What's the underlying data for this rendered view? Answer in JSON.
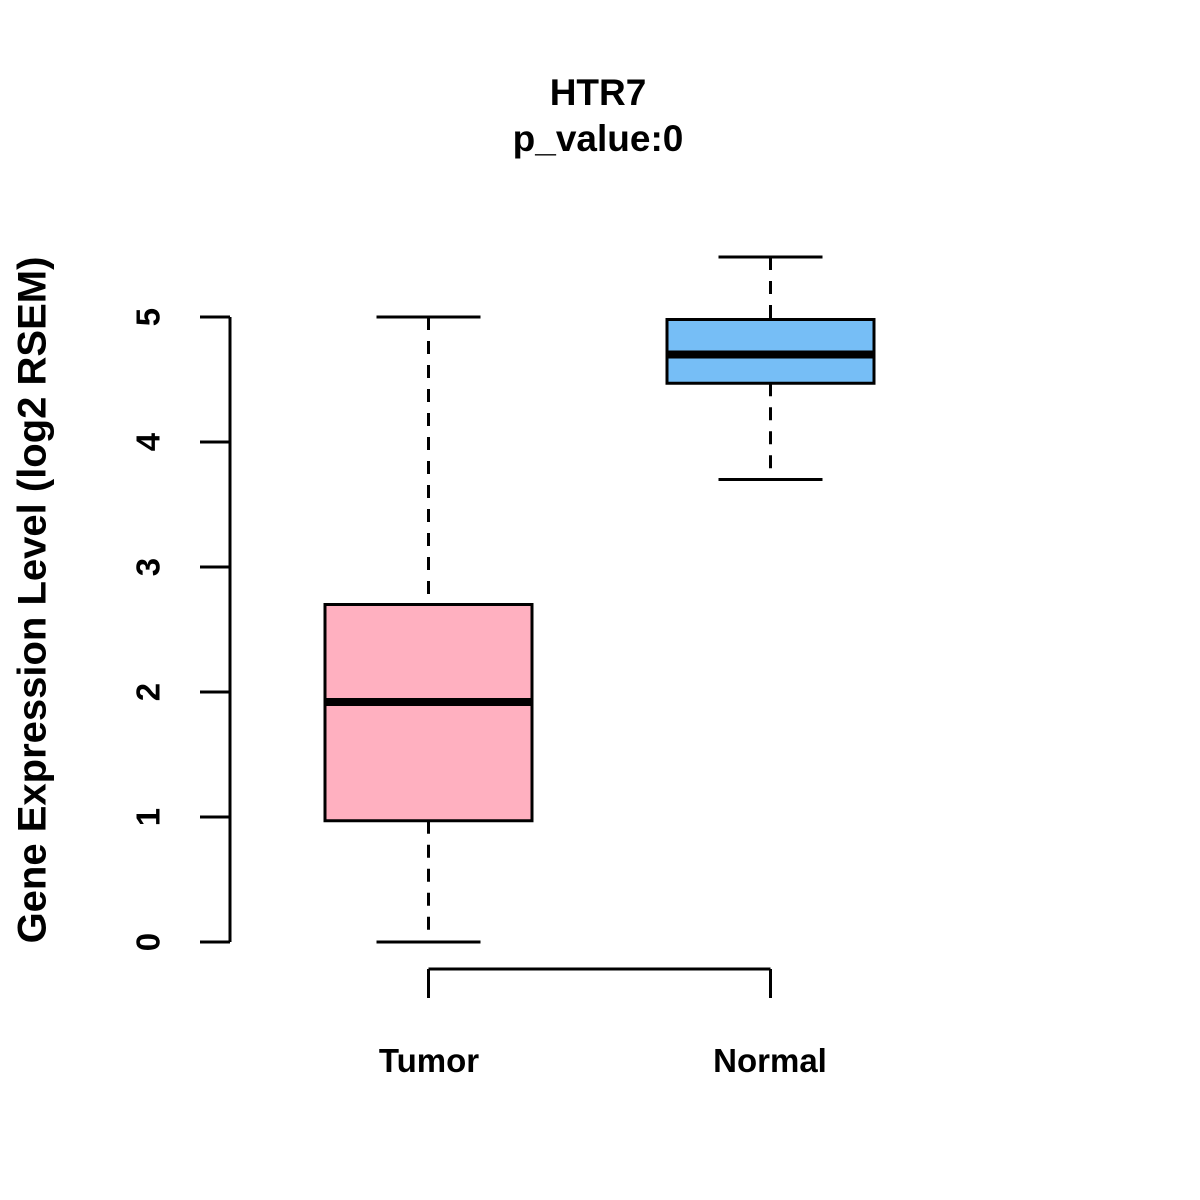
{
  "figure": {
    "background_color": "#FFFFFF",
    "axis_color": "#000000"
  },
  "chart_data": {
    "type": "boxplot",
    "title": "HTR7",
    "subtitle": "p_value:0",
    "ylabel": "Gene Expression Level (log2 RSEM)",
    "xlabel": "",
    "yaxis": {
      "min": 0,
      "max": 5,
      "ticks": [
        0,
        1,
        2,
        3,
        4,
        5
      ]
    },
    "grid": false,
    "legend": "none",
    "groups": [
      {
        "label": "Tumor",
        "fill_color": "#FFB0C0",
        "stroke_color": "#000000",
        "stats": {
          "whisker_low": 0.0,
          "q1": 0.97,
          "median": 1.92,
          "q3": 2.7,
          "whisker_high": 5.0
        }
      },
      {
        "label": "Normal",
        "fill_color": "#76BEF6",
        "stroke_color": "#000000",
        "stats": {
          "whisker_low": 3.7,
          "q1": 4.47,
          "median": 4.7,
          "q3": 4.98,
          "whisker_high": 5.48
        }
      }
    ]
  }
}
